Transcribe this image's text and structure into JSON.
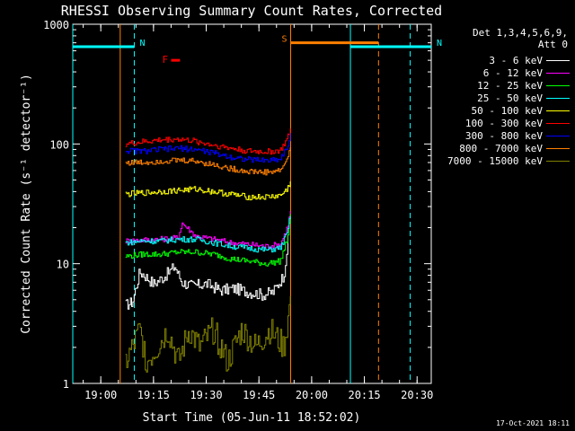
{
  "chart_data": {
    "type": "line",
    "title": "RHESSI Observing Summary Count Rates, Corrected",
    "xlabel": "Start Time (05-Jun-11 18:52:02)",
    "ylabel": "Corrected Count Rate (s⁻¹ detector⁻¹)",
    "y_scale": "log",
    "ylim": [
      1,
      1000
    ],
    "xlim_minutes_after_start": [
      0,
      102
    ],
    "x_tick_labels": [
      "19:00",
      "19:15",
      "19:30",
      "19:45",
      "20:00",
      "20:15",
      "20:30"
    ],
    "x_tick_minutes_after_start": [
      7.97,
      22.97,
      37.97,
      52.97,
      67.97,
      82.97,
      97.97
    ],
    "y_tick_labels": [
      "1",
      "10",
      "100",
      "1000"
    ],
    "y_tick_values": [
      1,
      10,
      100,
      1000
    ],
    "legend_header": [
      "Det 1,3,4,5,6,9,",
      "Att 0"
    ],
    "series": [
      {
        "name": "3 - 6 keV",
        "color": "#ffffff",
        "x": [
          15,
          17,
          19,
          20,
          23,
          26,
          29,
          31,
          34,
          38,
          42,
          46,
          50,
          54,
          57,
          60,
          61.5
        ],
        "values": [
          4.5,
          4.8,
          8.5,
          8.2,
          6.8,
          7.8,
          9.5,
          7.0,
          6.5,
          6.8,
          6.0,
          6.2,
          5.8,
          5.5,
          5.8,
          8.0,
          18
        ]
      },
      {
        "name": "6 - 12 keV",
        "color": "#ff00ff",
        "x": [
          15,
          20,
          25,
          30,
          31,
          35,
          40,
          45,
          50,
          55,
          59,
          61,
          62
        ],
        "values": [
          15.5,
          15.8,
          16.0,
          16.5,
          22,
          17.0,
          16.0,
          15.0,
          14.5,
          14.0,
          14.5,
          20,
          28
        ]
      },
      {
        "name": "12 - 25 keV",
        "color": "#00ff00",
        "x": [
          15,
          20,
          25,
          30,
          35,
          40,
          45,
          50,
          55,
          59,
          61,
          62
        ],
        "values": [
          11.5,
          12.0,
          12.0,
          12.5,
          12.5,
          12.0,
          11.0,
          10.5,
          10.0,
          10.5,
          16,
          26
        ]
      },
      {
        "name": "25 - 50 keV",
        "color": "#00ffff",
        "x": [
          15,
          20,
          25,
          30,
          35,
          40,
          45,
          50,
          55,
          59,
          61,
          62
        ],
        "values": [
          15.0,
          15.5,
          15.5,
          16.0,
          16.0,
          15.0,
          14.0,
          13.5,
          13.0,
          13.5,
          18,
          27
        ]
      },
      {
        "name": "50 - 100 keV",
        "color": "#ffff00",
        "x": [
          15,
          20,
          25,
          30,
          35,
          40,
          45,
          50,
          55,
          59,
          61,
          62
        ],
        "values": [
          38,
          39,
          40,
          41,
          42,
          40,
          38,
          36,
          36,
          37,
          42,
          50
        ]
      },
      {
        "name": "100 - 300 keV",
        "color": "#ff0000",
        "x": [
          15,
          20,
          25,
          30,
          35,
          40,
          45,
          50,
          55,
          59,
          61,
          62
        ],
        "values": [
          100,
          104,
          108,
          110,
          105,
          98,
          92,
          87,
          86,
          88,
          110,
          135
        ]
      },
      {
        "name": "300 - 800 keV",
        "color": "#0000ff",
        "x": [
          15,
          20,
          25,
          30,
          35,
          40,
          45,
          50,
          55,
          59,
          61,
          62
        ],
        "values": [
          88,
          87,
          90,
          92,
          90,
          84,
          78,
          74,
          73,
          75,
          95,
          120
        ]
      },
      {
        "name": "800 - 7000 keV",
        "color": "#ff8000",
        "x": [
          15,
          20,
          25,
          30,
          35,
          40,
          45,
          50,
          55,
          59,
          61,
          62
        ],
        "values": [
          70,
          70,
          72,
          73,
          72,
          67,
          62,
          59,
          58,
          60,
          75,
          100
        ]
      },
      {
        "name": "7000 - 15000 keV",
        "color": "#808000",
        "x": [
          15,
          17,
          19,
          21,
          24,
          27,
          30,
          33,
          36,
          40,
          44,
          48,
          52,
          56,
          60,
          61.5,
          62
        ],
        "values": [
          1.5,
          2.0,
          2.8,
          1.5,
          2.0,
          2.8,
          1.5,
          2.8,
          2.0,
          2.8,
          1.5,
          2.8,
          2.0,
          2.8,
          2.0,
          4,
          6
        ]
      }
    ],
    "flags": [
      {
        "label": "N",
        "color": "#00ffff",
        "level": 650,
        "x_start": 0,
        "x_end": 17.5
      },
      {
        "label": "N",
        "color": "#00ffff",
        "level": 650,
        "x_start": 79,
        "x_end": 102
      },
      {
        "label": "S",
        "color": "#ff8000",
        "level": 700,
        "x_start": 62,
        "x_end": 87
      },
      {
        "label": "F",
        "color": "#ff0000",
        "level": 500,
        "x_start": 28,
        "x_end": 30.5
      }
    ],
    "vertical_lines": [
      {
        "x": 0,
        "color": "#00ffff",
        "style": "solid"
      },
      {
        "x": 17.5,
        "color": "#00ffff",
        "style": "dashed"
      },
      {
        "x": 13.5,
        "color": "#ff8000",
        "style": "solid"
      },
      {
        "x": 62,
        "color": "#ff8000",
        "style": "solid"
      },
      {
        "x": 79,
        "color": "#00ffff",
        "style": "solid"
      },
      {
        "x": 87,
        "color": "#ff8000",
        "style": "dashed"
      },
      {
        "x": 96,
        "color": "#00ffff",
        "style": "dashed"
      }
    ],
    "legend_placement": "top-right",
    "grid": false
  },
  "footer": {
    "timestamp": "17-Oct-2021 18:11"
  }
}
